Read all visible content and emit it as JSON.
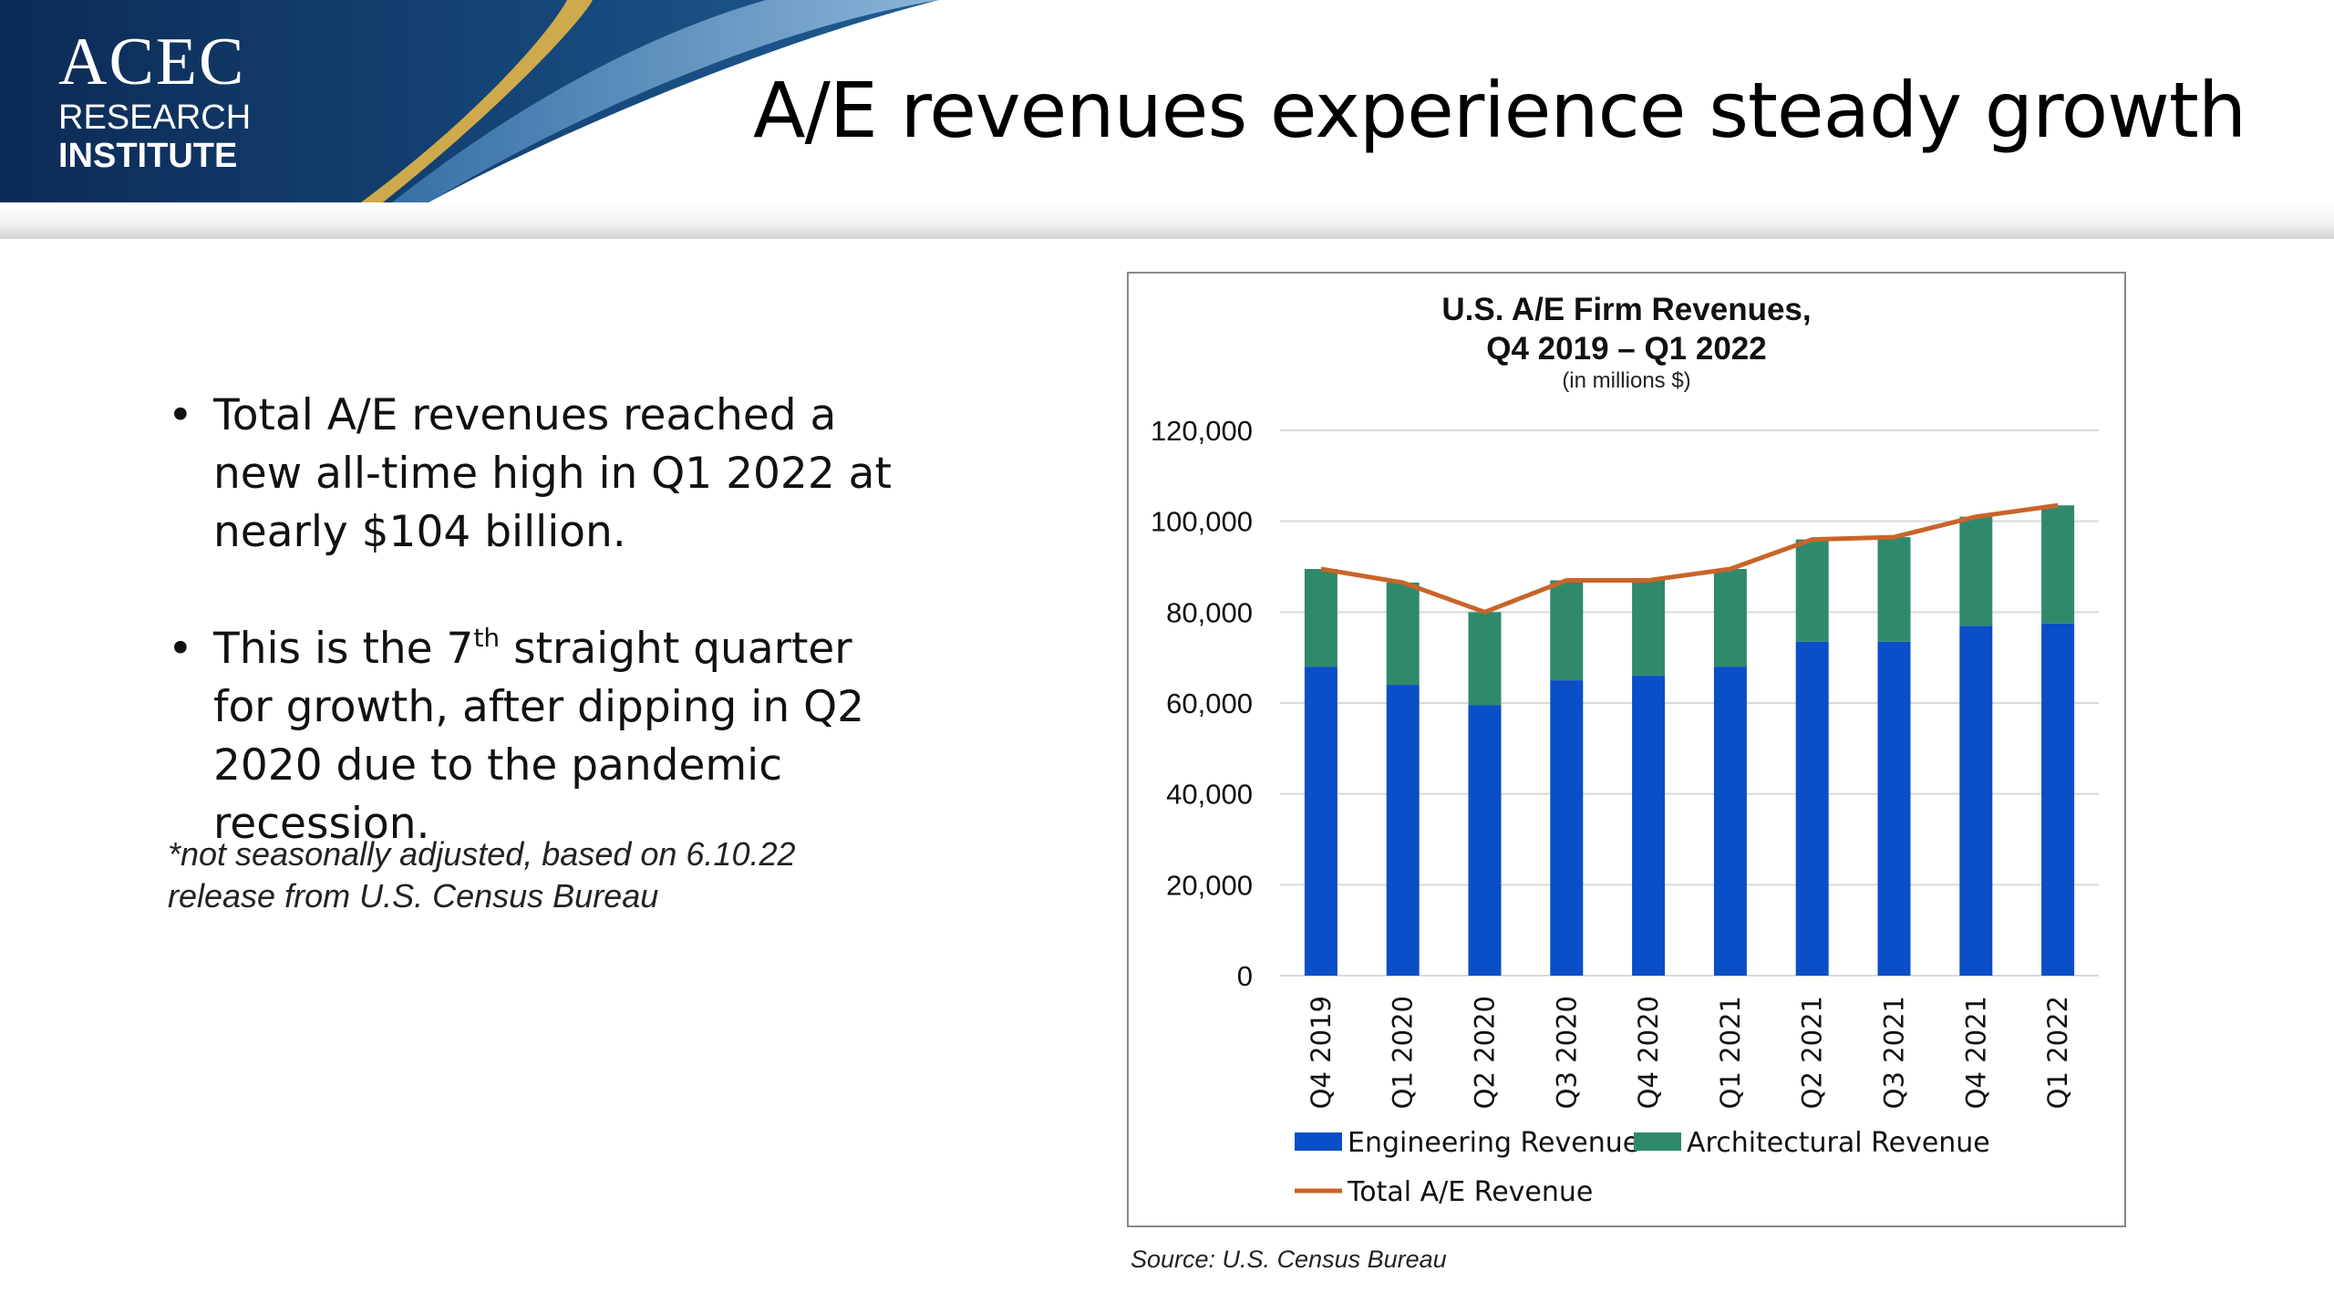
{
  "logo": {
    "line1": "ACEC",
    "line2": "RESEARCH",
    "line3": "INSTITUTE"
  },
  "slide": {
    "title": "A/E revenues experience steady growth"
  },
  "bullets": [
    {
      "text": "Total A/E revenues reached a new all-time high in Q1 2022 at nearly $104 billion."
    },
    {
      "pre": "This is the 7",
      "sup": "th",
      "post": " straight quarter for growth, after dipping in Q2 2020 due to the pandemic recession."
    }
  ],
  "bullet_symbol": "•",
  "footnote": "*not seasonally adjusted, based on 6.10.22 release from U.S. Census Bureau",
  "source": "Source: U.S. Census Bureau",
  "colors": {
    "engineering": "#0A4EC8",
    "architectural": "#2F8A6C",
    "total": "#C9642A",
    "banner_dark": "#0E2E5C",
    "banner_gold": "#D8B04A"
  },
  "chart_data": {
    "type": "bar",
    "stacked": true,
    "title_line1": "U.S. A/E Firm Revenues,",
    "title_line2": "Q4 2019 – Q1 2022",
    "subtitle": "(in millions $)",
    "categories": [
      "Q4 2019",
      "Q1 2020",
      "Q2 2020",
      "Q3 2020",
      "Q4 2020",
      "Q1 2021",
      "Q2 2021",
      "Q3 2021",
      "Q4 2021",
      "Q1 2022"
    ],
    "series": [
      {
        "name": "Engineering Revenue",
        "type": "bar",
        "values": [
          68000,
          64000,
          59500,
          65000,
          66000,
          68000,
          73500,
          73500,
          77000,
          77500
        ]
      },
      {
        "name": "Architectural Revenue",
        "type": "bar",
        "values": [
          21500,
          22500,
          20500,
          22000,
          21000,
          21500,
          22500,
          23000,
          24000,
          26000
        ]
      },
      {
        "name": "Total A/E Revenue",
        "type": "line",
        "values": [
          89500,
          86500,
          80000,
          87000,
          87000,
          89500,
          96000,
          96500,
          101000,
          103500
        ]
      }
    ],
    "ylim": [
      0,
      120000
    ],
    "yticks": [
      0,
      20000,
      40000,
      60000,
      80000,
      100000,
      120000
    ],
    "ytick_labels": [
      "0",
      "20,000",
      "40,000",
      "60,000",
      "80,000",
      "100,000",
      "120,000"
    ],
    "grid": true,
    "legend_position": "bottom"
  }
}
